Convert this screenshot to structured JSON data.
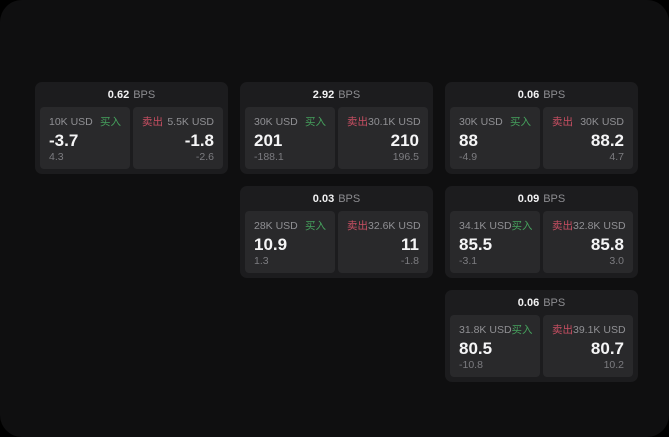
{
  "labels": {
    "buy": "买入",
    "sell": "卖出",
    "bps_unit": "BPS"
  },
  "colors": {
    "backdrop": "#000000",
    "window_bg": "#0f0f10",
    "card_bg": "#1c1c1e",
    "panel_bg": "#29292b",
    "buy_green": "#46a15d",
    "sell_red": "#c94f63",
    "text_primary": "#f5f5f6",
    "text_secondary": "#909094"
  },
  "cards": [
    {
      "bps": "0.62",
      "buy": {
        "size": "10K USD",
        "price": "-3.7",
        "delta": "4.3"
      },
      "sell": {
        "size": "5.5K USD",
        "price": "-1.8",
        "delta": "-2.6"
      }
    },
    {
      "bps": "2.92",
      "buy": {
        "size": "30K USD",
        "price": "201",
        "delta": "-188.1"
      },
      "sell": {
        "size": "30.1K USD",
        "price": "210",
        "delta": "196.5"
      }
    },
    {
      "bps": "0.06",
      "buy": {
        "size": "30K USD",
        "price": "88",
        "delta": "-4.9"
      },
      "sell": {
        "size": "30K USD",
        "price": "88.2",
        "delta": "4.7"
      }
    },
    {
      "bps": "0.03",
      "buy": {
        "size": "28K USD",
        "price": "10.9",
        "delta": "1.3"
      },
      "sell": {
        "size": "32.6K USD",
        "price": "11",
        "delta": "-1.8"
      }
    },
    {
      "bps": "0.09",
      "buy": {
        "size": "34.1K USD",
        "price": "85.5",
        "delta": "-3.1"
      },
      "sell": {
        "size": "32.8K USD",
        "price": "85.8",
        "delta": "3.0"
      }
    },
    {
      "bps": "0.06",
      "buy": {
        "size": "31.8K USD",
        "price": "80.5",
        "delta": "-10.8"
      },
      "sell": {
        "size": "39.1K USD",
        "price": "80.7",
        "delta": "10.2"
      }
    }
  ]
}
